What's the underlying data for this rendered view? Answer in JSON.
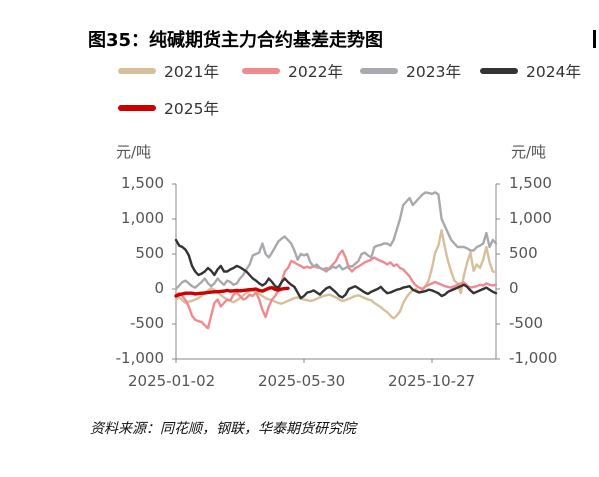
{
  "figure": {
    "title": "图35：纯碱期货主力合约基差走势图",
    "source": "资料来源：同花顺，钢联，华泰期货研究院"
  },
  "chart_data": {
    "type": "line",
    "xlabel": "",
    "ylabel_left": "元/吨",
    "ylabel_right": "元/吨",
    "ylim": [
      -1000,
      1500
    ],
    "yticks": [
      "1,500",
      "1,000",
      "500",
      "0",
      "-500",
      "-1,000"
    ],
    "yticks_right": [
      "1,500",
      "1,000",
      "500",
      "0",
      "-500",
      "-1,000"
    ],
    "xticks": [
      "2025-01-02",
      "2025-05-30",
      "2025-10-27"
    ],
    "legend_placement": "top",
    "grid": false,
    "series": [
      {
        "name": "2021年",
        "color": "#d6c09b",
        "values": [
          -150,
          -120,
          -160,
          -200,
          -180,
          -170,
          -150,
          -130,
          -100,
          -60,
          -20,
          10,
          -10,
          -40,
          -90,
          -120,
          -150,
          -170,
          -190,
          -160,
          -130,
          -90,
          -60,
          -30,
          -20,
          -40,
          -70,
          -100,
          -130,
          -150,
          -160,
          -180,
          -200,
          -210,
          -190,
          -170,
          -150,
          -130,
          -120,
          -140,
          -150,
          -160,
          -170,
          -160,
          -140,
          -120,
          -100,
          -90,
          -80,
          -100,
          -120,
          -150,
          -170,
          -160,
          -140,
          -120,
          -100,
          -90,
          -110,
          -130,
          -150,
          -160,
          -200,
          -230,
          -260,
          -300,
          -330,
          -380,
          -420,
          -380,
          -320,
          -200,
          -120,
          -60,
          -20,
          0,
          -50,
          -20,
          40,
          130,
          300,
          520,
          620,
          840,
          600,
          400,
          250,
          120,
          80,
          -60,
          200,
          380,
          520,
          260,
          350,
          300,
          420,
          600,
          380,
          250,
          240
        ]
      },
      {
        "name": "2022年",
        "color": "#f08a8f",
        "values": [
          -80,
          -60,
          -100,
          -160,
          -250,
          -380,
          -440,
          -460,
          -470,
          -520,
          -560,
          -380,
          -200,
          -150,
          -250,
          -200,
          -150,
          -160,
          -80,
          -50,
          -100,
          -150,
          -130,
          -80,
          -100,
          -50,
          -150,
          -300,
          -400,
          -250,
          -150,
          -100,
          -20,
          100,
          250,
          300,
          400,
          380,
          350,
          330,
          300,
          320,
          300,
          330,
          310,
          300,
          280,
          250,
          300,
          350,
          400,
          500,
          550,
          450,
          300,
          250,
          300,
          320,
          350,
          380,
          400,
          420,
          450,
          420,
          400,
          380,
          350,
          380,
          330,
          350,
          300,
          280,
          230,
          180,
          100,
          50,
          20,
          0,
          40,
          60,
          80,
          100,
          80,
          60,
          40,
          30,
          20,
          40,
          60,
          80,
          90,
          50,
          20,
          30,
          40,
          60,
          50,
          80,
          60,
          50,
          60
        ]
      },
      {
        "name": "2023年",
        "color": "#a7a9ac",
        "values": [
          0,
          50,
          100,
          120,
          80,
          40,
          20,
          60,
          100,
          150,
          80,
          40,
          80,
          150,
          100,
          60,
          120,
          100,
          60,
          80,
          150,
          200,
          280,
          350,
          480,
          500,
          520,
          650,
          500,
          450,
          520,
          600,
          680,
          720,
          750,
          700,
          650,
          550,
          420,
          500,
          480,
          500,
          380,
          320,
          350,
          300,
          280,
          300,
          280,
          320,
          300,
          340,
          280,
          300,
          330,
          320,
          360,
          400,
          500,
          520,
          480,
          450,
          600,
          620,
          630,
          650,
          650,
          620,
          700,
          850,
          1000,
          1200,
          1250,
          1300,
          1200,
          1250,
          1300,
          1350,
          1380,
          1370,
          1360,
          1380,
          1350,
          1000,
          900,
          800,
          700,
          650,
          600,
          600,
          600,
          580,
          550,
          550,
          600,
          620,
          650,
          800,
          600,
          700,
          650
        ]
      },
      {
        "name": "2024年",
        "color": "#333333",
        "values": [
          700,
          620,
          600,
          560,
          480,
          330,
          250,
          200,
          220,
          250,
          300,
          260,
          200,
          280,
          330,
          250,
          250,
          280,
          300,
          330,
          310,
          280,
          250,
          200,
          150,
          120,
          80,
          50,
          80,
          150,
          100,
          40,
          20,
          100,
          150,
          100,
          60,
          30,
          -50,
          -130,
          -100,
          -50,
          -40,
          -20,
          -50,
          -80,
          -30,
          10,
          30,
          -10,
          -50,
          -100,
          -120,
          -80,
          0,
          20,
          40,
          10,
          -20,
          -50,
          -70,
          -40,
          -20,
          0,
          30,
          -20,
          -60,
          -50,
          -30,
          -10,
          0,
          20,
          30,
          40,
          -10,
          -30,
          -50,
          -40,
          -30,
          -10,
          -20,
          -40,
          -60,
          -100,
          -80,
          -40,
          -20,
          0,
          20,
          40,
          60,
          30,
          -20,
          -60,
          -40,
          -20,
          0,
          20,
          -10,
          -40,
          -60
        ]
      },
      {
        "name": "2025年",
        "color": "#cc0000",
        "values": [
          -100,
          -80,
          -70,
          -60,
          -60,
          -60,
          -70,
          -65,
          -60,
          -55,
          -50,
          -45,
          -40,
          -40,
          -35,
          -30,
          -20,
          -30,
          -25,
          -20,
          -25,
          -20,
          -15,
          -10,
          -5,
          0,
          -20,
          -30,
          -10,
          10,
          20,
          -5,
          -15,
          0,
          5,
          10
        ]
      }
    ]
  }
}
